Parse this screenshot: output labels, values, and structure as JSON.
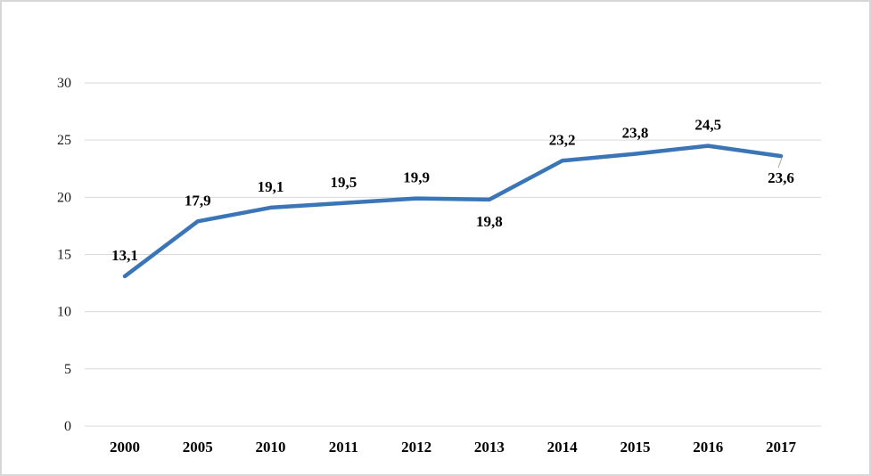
{
  "chart_data": {
    "type": "line",
    "title": "",
    "xlabel": "",
    "ylabel": "",
    "categories": [
      "2000",
      "2005",
      "2010",
      "2011",
      "2012",
      "2013",
      "2014",
      "2015",
      "2016",
      "2017"
    ],
    "values": [
      13.1,
      17.9,
      19.1,
      19.5,
      19.9,
      19.8,
      23.2,
      23.8,
      24.5,
      23.6
    ],
    "data_labels": [
      "13,1",
      "17,9",
      "19,1",
      "19,5",
      "19,9",
      "19,8",
      "23,2",
      "23,8",
      "24,5",
      "23,6"
    ],
    "label_placement": [
      "above",
      "above",
      "above",
      "above",
      "above",
      "below",
      "above",
      "above",
      "above",
      "below"
    ],
    "ylim": [
      0,
      30
    ],
    "yticks": [
      0,
      5,
      10,
      15,
      20,
      25,
      30
    ],
    "ytick_labels": [
      "0",
      "5",
      "10",
      "15",
      "20",
      "25",
      "30"
    ],
    "grid": true,
    "legend": "none",
    "series_color": "#3a75b7",
    "gridline_color": "#d9d9d9",
    "leader_line_color": "#a6a6a6",
    "label_color": "#000000",
    "leader_line_on": "2017"
  }
}
